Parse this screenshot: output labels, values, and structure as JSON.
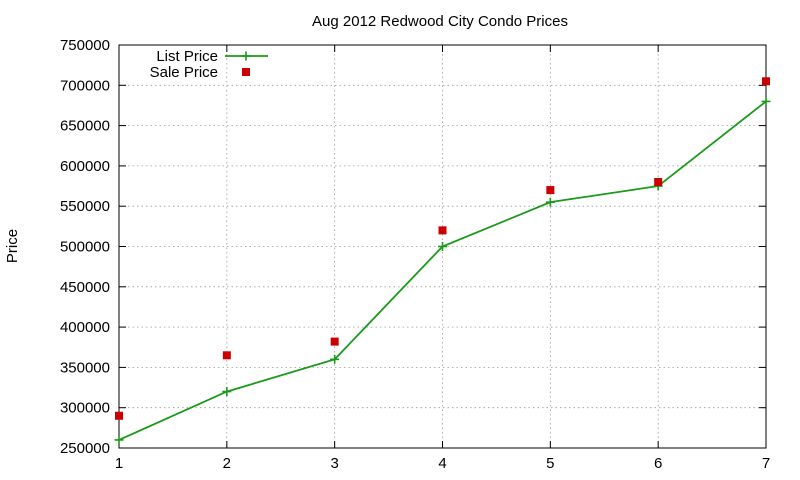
{
  "chart_data": {
    "type": "line",
    "title": "Aug 2012 Redwood City Condo Prices",
    "xlabel": "",
    "ylabel": "Price",
    "x": [
      1,
      2,
      3,
      4,
      5,
      6,
      7
    ],
    "xlim": [
      1,
      7
    ],
    "ylim": [
      250000,
      750000
    ],
    "xticks": [
      "1",
      "2",
      "3",
      "4",
      "5",
      "6",
      "7"
    ],
    "yticks": [
      "250000",
      "300000",
      "350000",
      "400000",
      "450000",
      "500000",
      "550000",
      "600000",
      "650000",
      "700000",
      "750000"
    ],
    "grid": true,
    "legend_position": "top-left",
    "series": [
      {
        "name": "List Price",
        "style": "line-points",
        "marker": "plus",
        "color": "#1a9a1a",
        "values": [
          260000,
          320000,
          360000,
          500000,
          555000,
          575000,
          680000
        ]
      },
      {
        "name": "Sale Price",
        "style": "points",
        "marker": "square",
        "color": "#cc0000",
        "values": [
          290000,
          365000,
          382000,
          520000,
          570000,
          580000,
          705000
        ]
      }
    ]
  }
}
